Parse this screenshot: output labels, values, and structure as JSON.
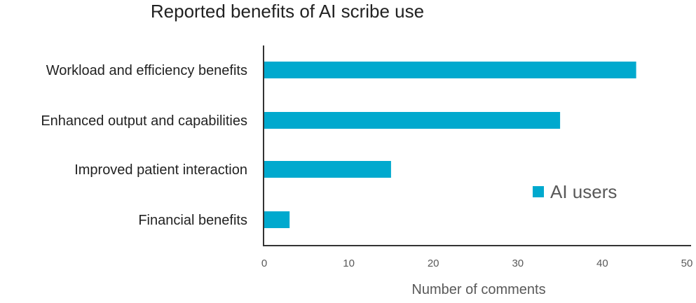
{
  "chart_data": {
    "type": "bar",
    "orientation": "horizontal",
    "title": "Reported benefits of AI scribe use",
    "xlabel": "Number of comments",
    "ylabel": "",
    "categories": [
      "Workload and efficiency benefits",
      "Enhanced output and capabilities",
      "Improved patient interaction",
      "Financial benefits"
    ],
    "series": [
      {
        "name": "AI users",
        "values": [
          44,
          35,
          15,
          3
        ],
        "color": "#00A9CE"
      }
    ],
    "xlim": [
      0,
      50
    ],
    "xticks": [
      "0",
      "10",
      "20",
      "30",
      "40",
      "50"
    ],
    "grid": false,
    "legend": "right"
  }
}
